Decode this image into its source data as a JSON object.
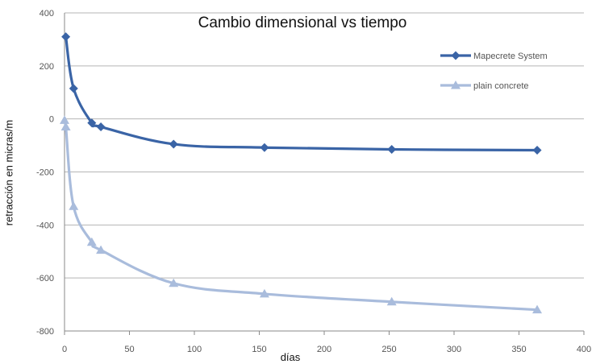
{
  "chart_data": {
    "type": "line",
    "title": "Cambio dimensional vs tiempo",
    "xlabel": "días",
    "ylabel": "retracción en micras/m",
    "xlim": [
      0,
      400
    ],
    "ylim": [
      -800,
      400
    ],
    "xticks": [
      0,
      50,
      100,
      150,
      200,
      250,
      300,
      350,
      400
    ],
    "yticks": [
      400,
      200,
      0,
      -200,
      -400,
      -600,
      -800
    ],
    "grid": "horizontal",
    "legend_position": "right",
    "series": [
      {
        "name": "Mapecrete System",
        "color": "#3a64a6",
        "marker": "diamond",
        "x": [
          1,
          7,
          21,
          28,
          84,
          154,
          252,
          364
        ],
        "y": [
          310,
          115,
          -15,
          -30,
          -95,
          -108,
          -115,
          -118
        ]
      },
      {
        "name": "plain concrete",
        "color": "#a9bcdc",
        "marker": "triangle",
        "x": [
          0,
          1,
          7,
          21,
          28,
          84,
          154,
          252,
          364
        ],
        "y": [
          -5,
          -30,
          -330,
          -465,
          -495,
          -620,
          -660,
          -690,
          -720
        ]
      }
    ]
  }
}
